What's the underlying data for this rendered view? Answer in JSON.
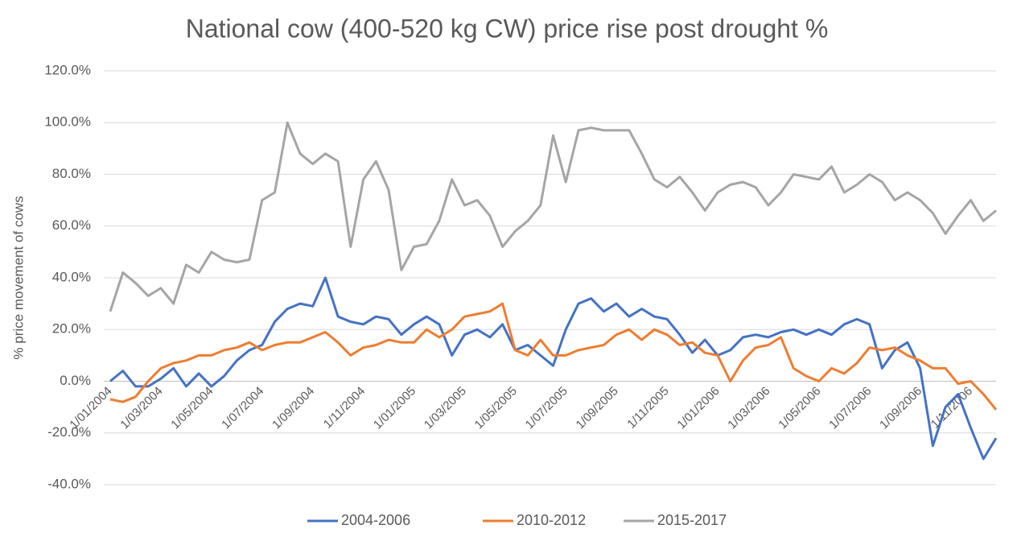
{
  "chart_data": {
    "type": "line",
    "title": "National cow (400-520 kg CW) price rise post drought %",
    "y_label": "% price movement of cows",
    "categories": [
      "1/01/2004",
      null,
      null,
      null,
      "1/03/2004",
      null,
      null,
      null,
      "1/05/2004",
      null,
      null,
      null,
      "1/07/2004",
      null,
      null,
      null,
      "1/09/2004",
      null,
      null,
      null,
      "1/11/2004",
      null,
      null,
      null,
      "1/01/2005",
      null,
      null,
      null,
      "1/03/2005",
      null,
      null,
      null,
      "1/05/2005",
      null,
      null,
      null,
      "1/07/2005",
      null,
      null,
      null,
      "1/09/2005",
      null,
      null,
      null,
      "1/11/2005",
      null,
      null,
      null,
      "1/01/2006",
      null,
      null,
      null,
      "1/03/2006",
      null,
      null,
      null,
      "1/05/2006",
      null,
      null,
      null,
      "1/07/2006",
      null,
      null,
      null,
      "1/09/2006",
      null,
      null,
      null,
      "1/11/2006",
      null,
      null
    ],
    "series": [
      {
        "name": "2004-2006",
        "color": "#4472c4",
        "values": [
          0,
          4,
          -2,
          -2,
          1,
          5,
          -2,
          3,
          -2,
          2,
          8,
          12,
          14,
          23,
          28,
          30,
          29,
          40,
          25,
          23,
          22,
          25,
          24,
          18,
          22,
          25,
          22,
          10,
          18,
          20,
          17,
          22,
          12,
          14,
          10,
          6,
          20,
          30,
          32,
          27,
          30,
          25,
          28,
          25,
          24,
          18,
          11,
          16,
          10,
          12,
          17,
          18,
          17,
          19,
          20,
          18,
          20,
          18,
          22,
          24,
          22,
          5,
          12,
          15,
          5,
          -25,
          -10,
          -5,
          -18,
          -30,
          -22
        ]
      },
      {
        "name": "2010-2012",
        "color": "#ed7d31",
        "values": [
          -7,
          -8,
          -6,
          0,
          5,
          7,
          8,
          10,
          10,
          12,
          13,
          15,
          12,
          14,
          15,
          15,
          17,
          19,
          15,
          10,
          13,
          14,
          16,
          15,
          15,
          20,
          17,
          20,
          25,
          26,
          27,
          30,
          12,
          10,
          16,
          10,
          10,
          12,
          13,
          14,
          18,
          20,
          16,
          20,
          18,
          14,
          15,
          11,
          10,
          0,
          8,
          13,
          14,
          17,
          5,
          2,
          0,
          5,
          3,
          7,
          13,
          12,
          13,
          10,
          8,
          5,
          5,
          -1,
          0,
          -5,
          -11
        ]
      },
      {
        "name": "2015-2017",
        "color": "#a5a5a5",
        "values": [
          27,
          42,
          38,
          33,
          36,
          30,
          45,
          42,
          50,
          47,
          46,
          47,
          70,
          73,
          100,
          88,
          84,
          88,
          85,
          52,
          78,
          85,
          74,
          43,
          52,
          53,
          62,
          78,
          68,
          70,
          64,
          52,
          58,
          62,
          68,
          95,
          77,
          97,
          98,
          97,
          97,
          97,
          88,
          78,
          75,
          79,
          73,
          66,
          73,
          76,
          77,
          75,
          68,
          73,
          80,
          79,
          78,
          83,
          73,
          76,
          80,
          77,
          70,
          73,
          70,
          65,
          57,
          64,
          70,
          62,
          66
        ]
      }
    ],
    "ylim": [
      -40,
      120
    ],
    "yticks": [
      {
        "value": -40,
        "label": "-40.0%"
      },
      {
        "value": -20,
        "label": "-20.0%"
      },
      {
        "value": 0,
        "label": "0.0%"
      },
      {
        "value": 20,
        "label": "20.0%"
      },
      {
        "value": 40,
        "label": "40.0%"
      },
      {
        "value": 60,
        "label": "60.0%"
      },
      {
        "value": 80,
        "label": "80.0%"
      },
      {
        "value": 100,
        "label": "100.0%"
      },
      {
        "value": 120,
        "label": "120.0%"
      }
    ],
    "grid": true,
    "legend": "bottom"
  }
}
